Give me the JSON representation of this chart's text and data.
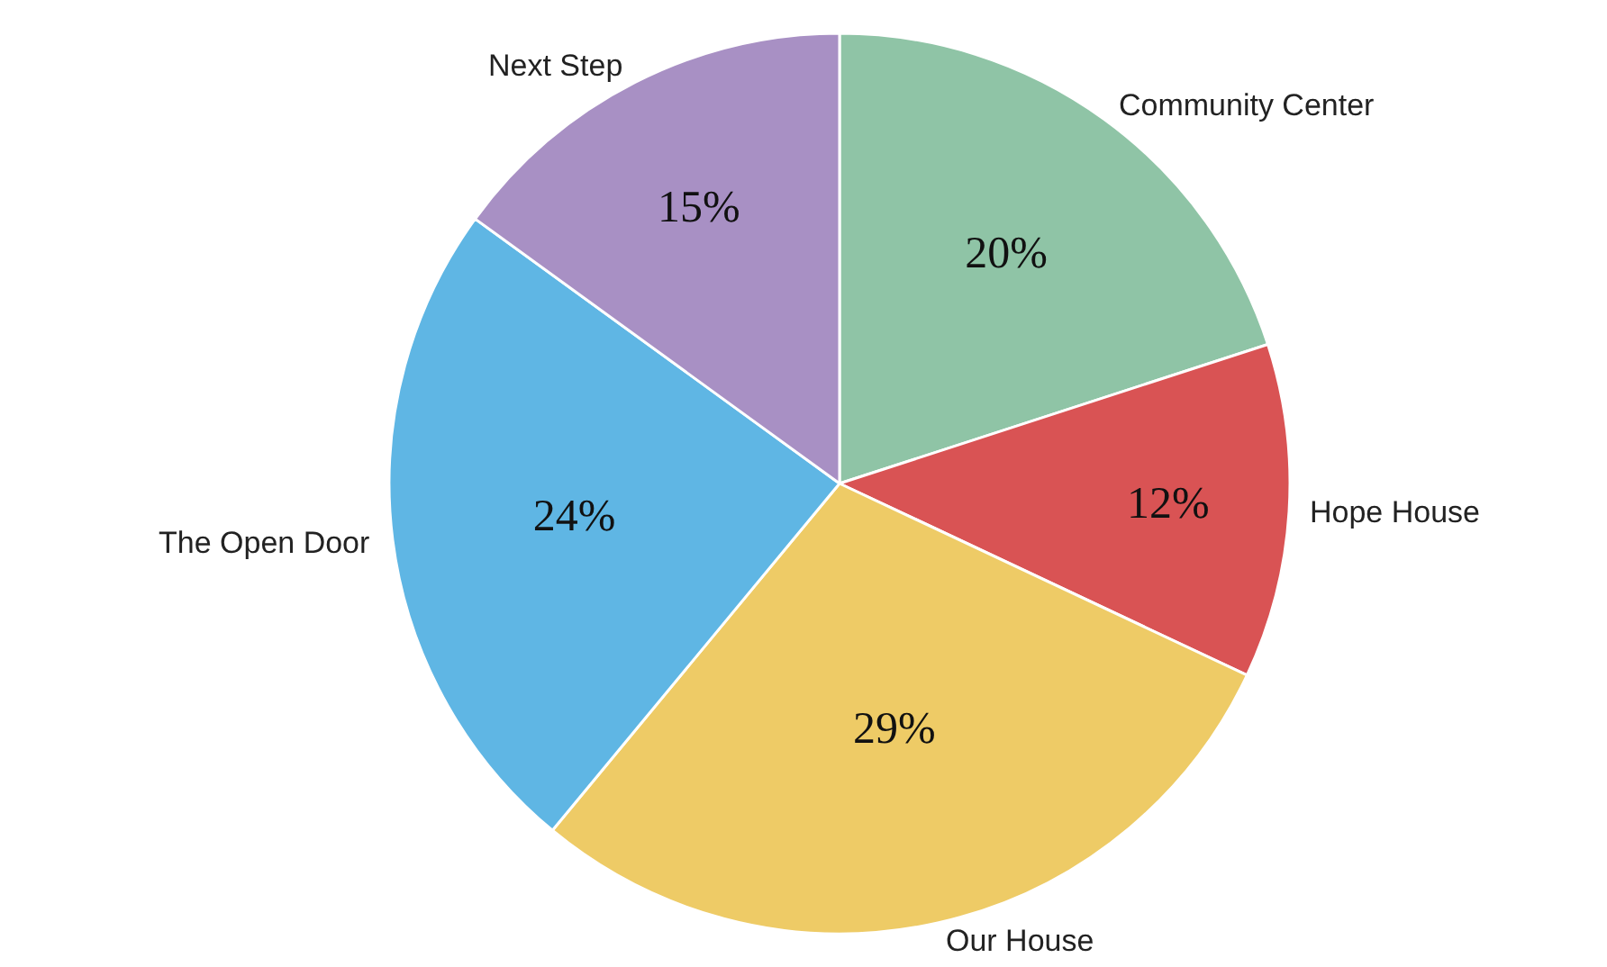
{
  "chart_data": {
    "type": "pie",
    "categories": [
      "Community Center",
      "Hope House",
      "Our House",
      "The Open Door",
      "Next Step"
    ],
    "values": [
      20,
      12,
      29,
      24,
      15
    ],
    "value_labels": [
      "20%",
      "12%",
      "29%",
      "24%",
      "15%"
    ],
    "colors": [
      "#8fc4a6",
      "#d95354",
      "#eecb66",
      "#5fb6e4",
      "#a890c4"
    ],
    "legend": false
  }
}
